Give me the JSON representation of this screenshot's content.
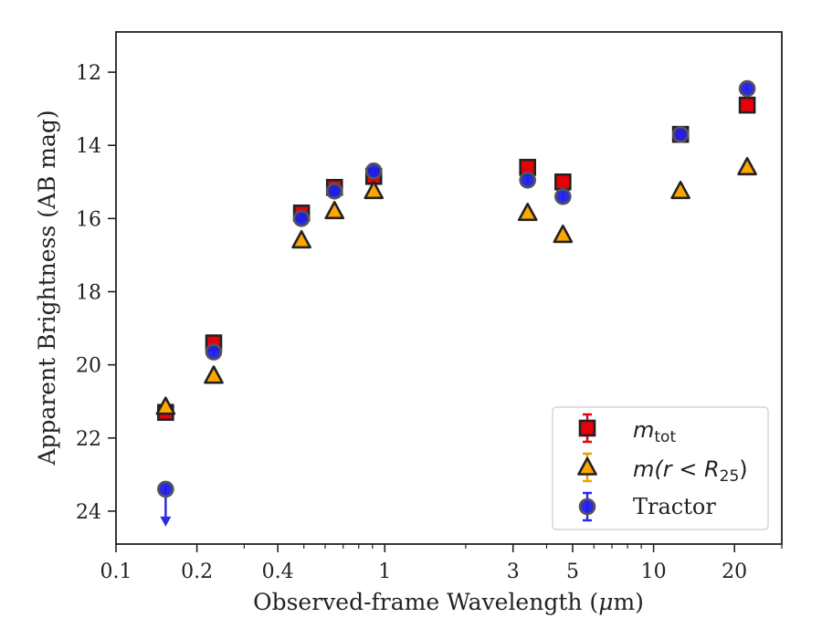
{
  "chart_data": {
    "type": "scatter",
    "xscale": "log",
    "xlim": [
      0.1,
      30
    ],
    "ylim": [
      24.9,
      10.9
    ],
    "yinverted": true,
    "xlabel_pre": "Observed-frame Wavelength (",
    "xlabel_mu": "μ",
    "xlabel_post": "m)",
    "ylabel": "Apparent Brightness (AB mag)",
    "xticks": [
      {
        "value": 0.1,
        "label": "0.1"
      },
      {
        "value": 0.2,
        "label": "0.2"
      },
      {
        "value": 0.4,
        "label": "0.4"
      },
      {
        "value": 1,
        "label": "1"
      },
      {
        "value": 3,
        "label": "3"
      },
      {
        "value": 5,
        "label": "5"
      },
      {
        "value": 10,
        "label": "10"
      },
      {
        "value": 20,
        "label": "20"
      }
    ],
    "yticks": [
      {
        "value": 12,
        "label": "12"
      },
      {
        "value": 14,
        "label": "14"
      },
      {
        "value": 16,
        "label": "16"
      },
      {
        "value": 18,
        "label": "18"
      },
      {
        "value": 20,
        "label": "20"
      },
      {
        "value": 22,
        "label": "22"
      },
      {
        "value": 24,
        "label": "24"
      }
    ],
    "legend_position": "lower right",
    "series": [
      {
        "legend_var": "m",
        "legend_sub": "tot",
        "marker": "square",
        "color": "#e8000b",
        "errorbar_color": "#e8000b",
        "points": [
          {
            "x": 0.153,
            "y": 21.3
          },
          {
            "x": 0.231,
            "y": 19.4
          },
          {
            "x": 0.49,
            "y": 15.85
          },
          {
            "x": 0.65,
            "y": 15.15
          },
          {
            "x": 0.91,
            "y": 14.85
          },
          {
            "x": 3.4,
            "y": 14.6
          },
          {
            "x": 4.6,
            "y": 15.0
          },
          {
            "x": 12.6,
            "y": 13.7
          },
          {
            "x": 22.3,
            "y": 12.9
          }
        ]
      },
      {
        "legend_text": "m(r < R",
        "legend_sub": "25",
        "legend_close": ")",
        "marker": "triangle",
        "color": "#ffa500",
        "errorbar_color": "#e8a400",
        "points": [
          {
            "x": 0.153,
            "y": 21.15
          },
          {
            "x": 0.231,
            "y": 20.3
          },
          {
            "x": 0.49,
            "y": 16.6
          },
          {
            "x": 0.65,
            "y": 15.8
          },
          {
            "x": 0.91,
            "y": 15.25
          },
          {
            "x": 3.4,
            "y": 15.85
          },
          {
            "x": 4.6,
            "y": 16.45
          },
          {
            "x": 12.6,
            "y": 15.25
          },
          {
            "x": 22.3,
            "y": 14.6
          }
        ]
      },
      {
        "legend_text": "Tractor",
        "marker": "circle",
        "color": "#1f1fe8",
        "errorbar_color": "#2a2ae8",
        "points": [
          {
            "x": 0.153,
            "y": 23.4,
            "upper_limit": true
          },
          {
            "x": 0.231,
            "y": 19.65
          },
          {
            "x": 0.49,
            "y": 16.0
          },
          {
            "x": 0.65,
            "y": 15.25
          },
          {
            "x": 0.91,
            "y": 14.7
          },
          {
            "x": 3.4,
            "y": 14.95
          },
          {
            "x": 4.6,
            "y": 15.4
          },
          {
            "x": 12.6,
            "y": 13.7
          },
          {
            "x": 22.3,
            "y": 12.45
          }
        ]
      }
    ]
  }
}
